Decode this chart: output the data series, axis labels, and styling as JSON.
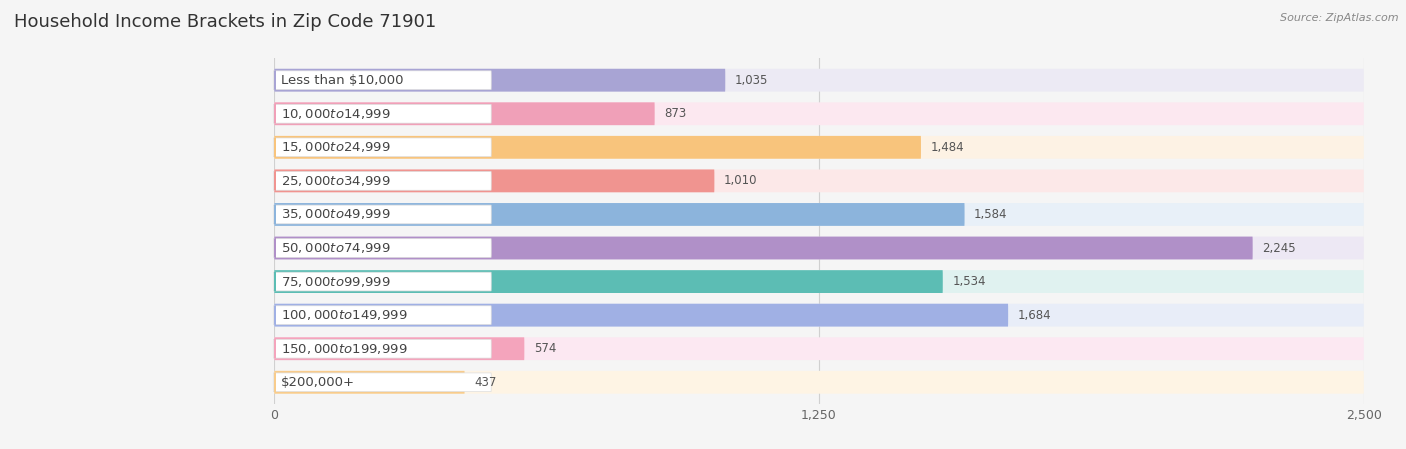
{
  "title": "Household Income Brackets in Zip Code 71901",
  "source": "Source: ZipAtlas.com",
  "categories": [
    "Less than $10,000",
    "$10,000 to $14,999",
    "$15,000 to $24,999",
    "$25,000 to $34,999",
    "$35,000 to $49,999",
    "$50,000 to $74,999",
    "$75,000 to $99,999",
    "$100,000 to $149,999",
    "$150,000 to $199,999",
    "$200,000+"
  ],
  "values": [
    1035,
    873,
    1484,
    1010,
    1584,
    2245,
    1534,
    1684,
    574,
    437
  ],
  "bar_colors": [
    "#a8a4d4",
    "#f0a0b8",
    "#f8c47c",
    "#f09490",
    "#8cb4dc",
    "#b090c8",
    "#5cbdb4",
    "#a0b0e4",
    "#f4a4bc",
    "#f8cc8c"
  ],
  "bar_bg_colors": [
    "#eceaf4",
    "#fce8f0",
    "#fdf2e4",
    "#fce8e8",
    "#e8f0f8",
    "#ede8f4",
    "#e0f2f0",
    "#e8edf8",
    "#fce8f2",
    "#fef4e4"
  ],
  "xlim_min": 0,
  "xlim_max": 2500,
  "xticks": [
    0,
    1250,
    2500
  ],
  "title_fontsize": 13,
  "label_fontsize": 9.5,
  "value_fontsize": 8.5,
  "tick_fontsize": 9,
  "bg_color": "#f5f5f5",
  "bar_area_bg": "#ffffff",
  "label_pill_color": "#ffffff",
  "label_text_color": "#444444",
  "value_text_color": "#555555",
  "grid_color": "#d0d0d0"
}
